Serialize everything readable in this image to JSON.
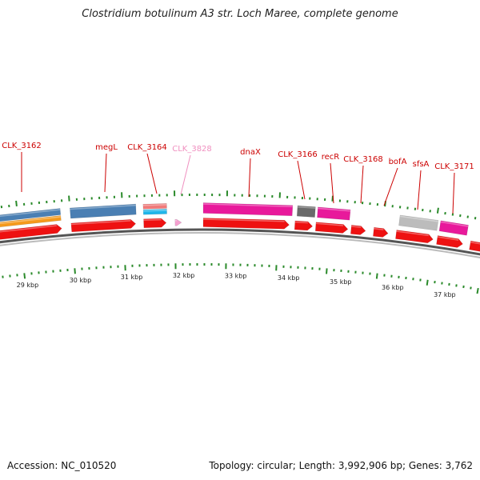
{
  "title": "Clostridium botulinum A3 str. Loch Maree, complete genome",
  "footer": {
    "accession": "Accession: NC_010520",
    "summary": "Topology: circular; Length: 3,992,906 bp; Genes: 3,762"
  },
  "colors": {
    "cds_red": "#ee1111",
    "steel_blue": "#4a7fb3",
    "orange": "#f59a1c",
    "magenta": "#e8199b",
    "salmon": "#f07a7a",
    "cyan": "#1fb6ea",
    "dark_gray": "#6a6a6a",
    "light_gray": "#bcbcbc",
    "pink": "#f5a0d0",
    "label_red": "#cc0000",
    "label_pink": "#f090c0",
    "tick_green": "#2a8a2a"
  },
  "kbp_ticks": [
    "29 kbp",
    "30 kbp",
    "31 kbp",
    "32 kbp",
    "33 kbp",
    "34 kbp",
    "35 kbp",
    "36 kbp",
    "37 kbp"
  ],
  "gene_labels": [
    "CLK_3162",
    "megL",
    "CLK_3164",
    "CLK_3828",
    "dnaX",
    "CLK_3166",
    "recR",
    "CLK_3168",
    "bofA",
    "sfsA",
    "CLK_3171"
  ]
}
